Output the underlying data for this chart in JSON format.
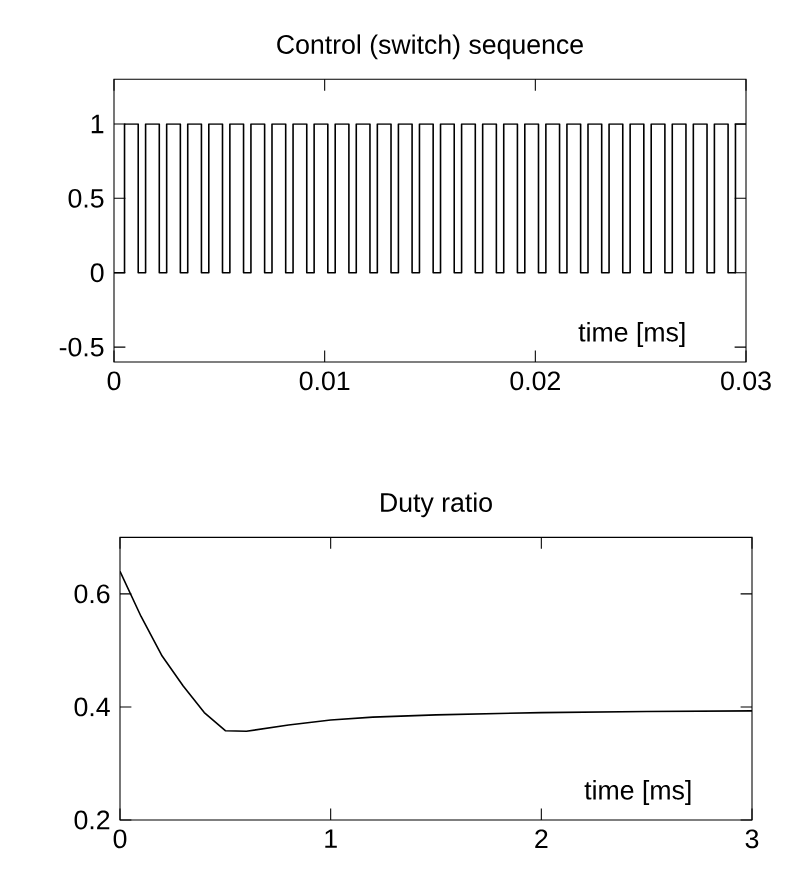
{
  "chart_data": [
    {
      "type": "step",
      "title": "Control (switch) sequence",
      "xlabel": "time [ms]",
      "color": "#000000",
      "x": [
        0,
        0.0005,
        0.00115,
        0.0015,
        0.00215,
        0.0025,
        0.00315,
        0.0035,
        0.00415,
        0.0045,
        0.00515,
        0.0055,
        0.00615,
        0.0065,
        0.00715,
        0.0075,
        0.00815,
        0.0085,
        0.00915,
        0.0095,
        0.01015,
        0.0105,
        0.01115,
        0.0115,
        0.01215,
        0.0125,
        0.01315,
        0.0135,
        0.01415,
        0.0145,
        0.01515,
        0.0155,
        0.01615,
        0.0165,
        0.01715,
        0.0175,
        0.01815,
        0.0185,
        0.01915,
        0.0195,
        0.02015,
        0.0205,
        0.02115,
        0.0215,
        0.02215,
        0.0225,
        0.02315,
        0.0235,
        0.02415,
        0.0245,
        0.02515,
        0.0255,
        0.02615,
        0.0265,
        0.02715,
        0.0275,
        0.02815,
        0.0285,
        0.02915,
        0.0295,
        0.03
      ],
      "values": [
        0,
        1,
        0,
        1,
        0,
        1,
        0,
        1,
        0,
        1,
        0,
        1,
        0,
        1,
        0,
        1,
        0,
        1,
        0,
        1,
        0,
        1,
        0,
        1,
        0,
        1,
        0,
        1,
        0,
        1,
        0,
        1,
        0,
        1,
        0,
        1,
        0,
        1,
        0,
        1,
        0,
        1,
        0,
        1,
        0,
        1,
        0,
        1,
        0,
        1,
        0,
        1,
        0,
        1,
        0,
        1,
        0,
        1,
        0,
        1,
        1
      ],
      "xlim": [
        0,
        0.03
      ],
      "ylim": [
        -0.6,
        1.3
      ],
      "xticks": [
        0,
        0.01,
        0.02,
        0.03
      ],
      "yticks": [
        -0.5,
        0,
        0.5,
        1
      ]
    },
    {
      "type": "line",
      "title": "Duty ratio",
      "xlabel": "time [ms]",
      "color": "#000000",
      "x": [
        0,
        0.1,
        0.2,
        0.3,
        0.4,
        0.5,
        0.6,
        0.8,
        1.0,
        1.2,
        1.5,
        2.0,
        2.5,
        3.0
      ],
      "values": [
        0.64,
        0.56,
        0.49,
        0.437,
        0.39,
        0.358,
        0.357,
        0.368,
        0.377,
        0.382,
        0.386,
        0.39,
        0.392,
        0.393
      ],
      "xlim": [
        0,
        3
      ],
      "ylim": [
        0.2,
        0.7
      ],
      "xticks": [
        0,
        1,
        2,
        3
      ],
      "yticks": [
        0.2,
        0.4,
        0.6
      ]
    }
  ]
}
